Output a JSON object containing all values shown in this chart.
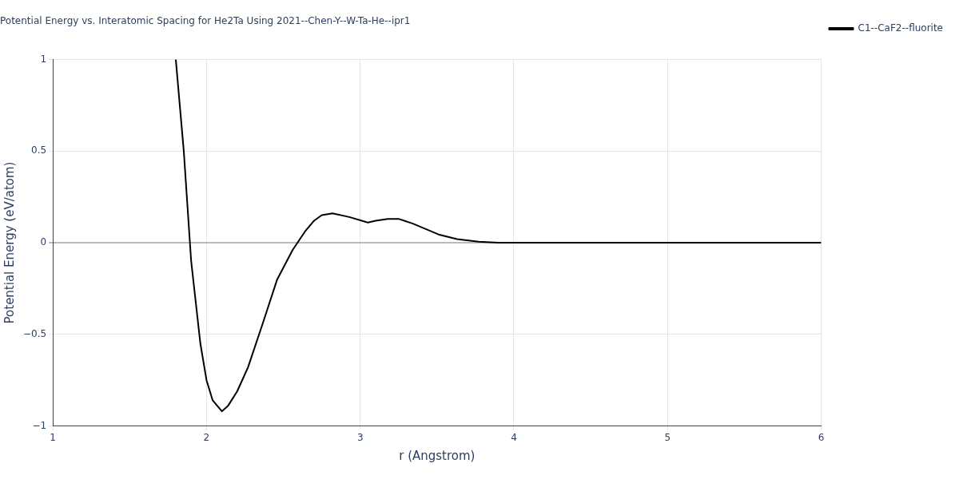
{
  "chart_data": {
    "type": "line",
    "title": "Potential Energy vs. Interatomic Spacing for He2Ta Using 2021--Chen-Y--W-Ta-He--ipr1",
    "xlabel": "r (Angstrom)",
    "ylabel": "Potential Energy (eV/atom)",
    "series": [
      {
        "name": "C1--CaF2--fluorite",
        "color": "#000000",
        "x": [
          1.8,
          1.852,
          1.9,
          1.96,
          2.0,
          2.04,
          2.1,
          2.14,
          2.2,
          2.27,
          2.37,
          2.46,
          2.56,
          2.64,
          2.7,
          2.75,
          2.82,
          2.93,
          3.05,
          3.1,
          3.18,
          3.25,
          3.34,
          3.51,
          3.63,
          3.77,
          3.9,
          6
        ],
        "values": [
          1,
          0.5,
          -0.1,
          -0.55,
          -0.75,
          -0.86,
          -0.92,
          -0.89,
          -0.81,
          -0.68,
          -0.43,
          -0.2,
          -0.04,
          0.06,
          0.12,
          0.15,
          0.16,
          0.14,
          0.11,
          0.12,
          0.13,
          0.13,
          0.105,
          0.045,
          0.02,
          0.005,
          0,
          0
        ]
      }
    ],
    "xlim": [
      1,
      6
    ],
    "xticks": [
      1,
      2,
      3,
      4,
      5,
      6
    ],
    "ylim": [
      -1,
      1
    ],
    "yticks": [
      {
        "value": -1,
        "label": "−1"
      },
      {
        "value": -0.5,
        "label": "−0.5"
      },
      0,
      0.5,
      1
    ],
    "grid": true,
    "legend": "top right",
    "marker": "none",
    "line_style": "solid"
  }
}
